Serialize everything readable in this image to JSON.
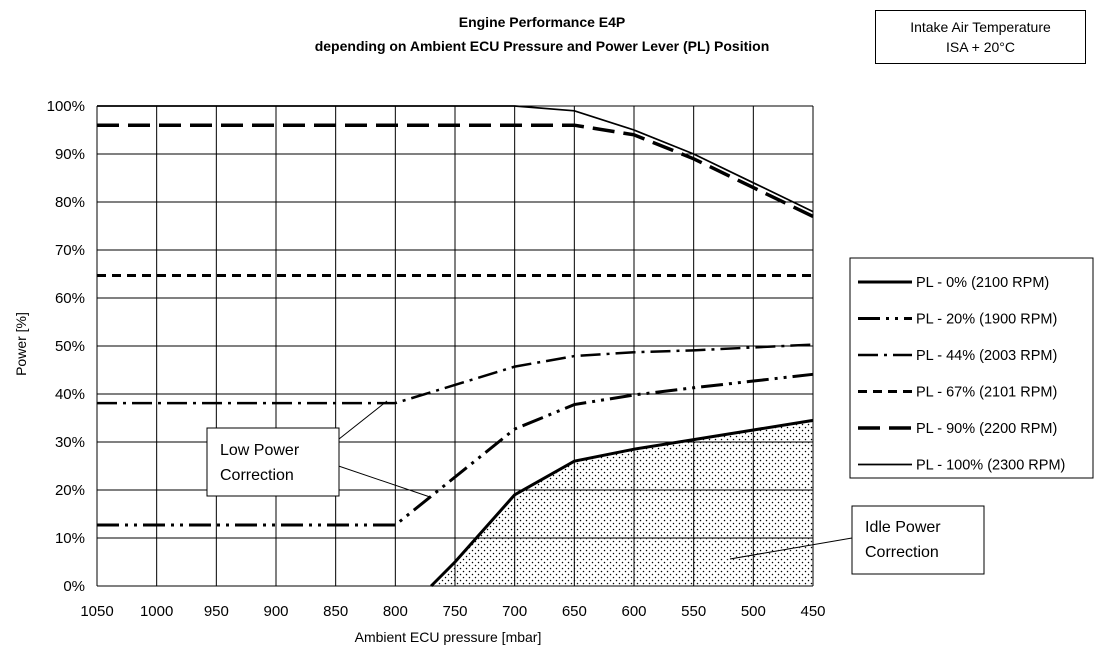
{
  "chart_data": {
    "type": "line",
    "title": [
      "Engine Performance E4P",
      "depending on Ambient ECU Pressure and Power Lever (PL) Position"
    ],
    "xlabel": "Ambient ECU pressure [mbar]",
    "ylabel": "Power [%]",
    "xlim": [
      1050,
      450
    ],
    "ylim": [
      0,
      100
    ],
    "x_ticks": [
      "1050",
      "1000",
      "950",
      "900",
      "850",
      "800",
      "750",
      "700",
      "650",
      "600",
      "550",
      "500",
      "450"
    ],
    "y_ticks": [
      "0%",
      "10%",
      "20%",
      "30%",
      "40%",
      "50%",
      "60%",
      "70%",
      "80%",
      "90%",
      "100%"
    ],
    "grid": true,
    "legend_position": "right",
    "series": [
      {
        "name": "PL - 0% (2100 RPM)",
        "style": "solid-thick",
        "x": [
          770,
          750,
          700,
          650,
          600,
          550,
          500,
          450
        ],
        "y": [
          0,
          5,
          19,
          26,
          28.5,
          30.5,
          32.5,
          34.5
        ]
      },
      {
        "name": "PL - 20% (1900 RPM)",
        "style": "dash-dot-dot",
        "x": [
          1050,
          800,
          700,
          650,
          600,
          550,
          500,
          450
        ],
        "y": [
          12.7,
          12.7,
          32.7,
          37.8,
          39.8,
          41.3,
          42.7,
          44.1
        ]
      },
      {
        "name": "PL - 44% (2003 RPM)",
        "style": "dash-dot",
        "x": [
          1050,
          800,
          700,
          650,
          600,
          550,
          500,
          450
        ],
        "y": [
          38.1,
          38.1,
          45.7,
          47.9,
          48.7,
          49.1,
          49.7,
          50.3
        ]
      },
      {
        "name": "PL - 67% (2101 RPM)",
        "style": "short-dash",
        "x": [
          1050,
          450
        ],
        "y": [
          64.7,
          64.7
        ]
      },
      {
        "name": "PL - 90% (2200 RPM)",
        "style": "long-dash",
        "x": [
          1050,
          650,
          600,
          550,
          500,
          450
        ],
        "y": [
          96,
          96,
          94,
          89,
          83,
          77
        ]
      },
      {
        "name": "PL - 100% (2300 RPM)",
        "style": "solid-thin",
        "x": [
          1050,
          700,
          650,
          600,
          550,
          500,
          450
        ],
        "y": [
          100,
          100,
          99,
          95,
          90,
          84,
          78
        ]
      }
    ],
    "shaded_region": {
      "pattern": "dotted",
      "boundary_series": "PL - 0% (2100 RPM)"
    },
    "annotations": [
      {
        "id": "low-power",
        "lines": [
          "Low Power",
          "Correction"
        ]
      },
      {
        "id": "idle-power",
        "lines": [
          "Idle Power",
          "Correction"
        ]
      }
    ]
  },
  "corner_note": {
    "line1": "Intake Air Temperature",
    "line2": "ISA + 20°C"
  }
}
